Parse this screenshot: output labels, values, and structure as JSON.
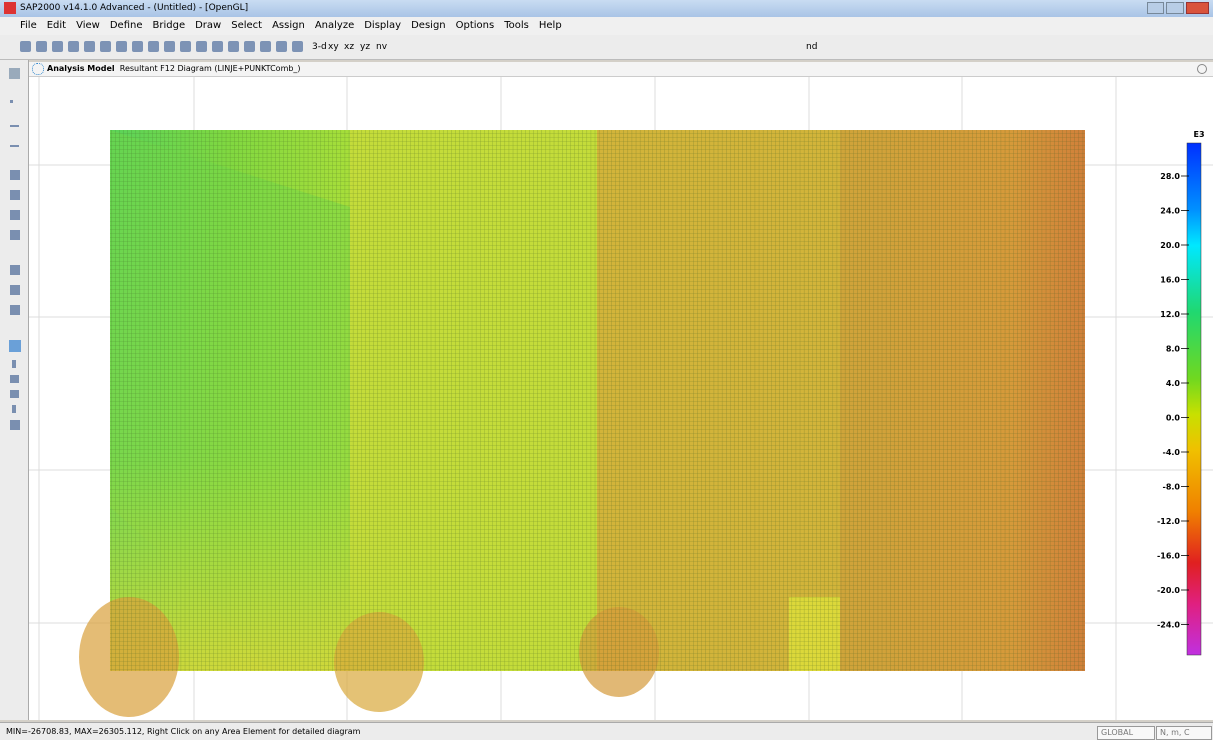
{
  "window": {
    "title": "SAP2000 v14.1.0 Advanced  - (Untitled) - [OpenGL]"
  },
  "menu": [
    "File",
    "Edit",
    "View",
    "Define",
    "Bridge",
    "Draw",
    "Select",
    "Assign",
    "Analyze",
    "Display",
    "Design",
    "Options",
    "Tools",
    "Help"
  ],
  "toolbar": [
    "3-d",
    "xy",
    "xz",
    "yz",
    "nv",
    "nd"
  ],
  "tab": {
    "title": "Analysis Model",
    "subtitle": "Resultant F12 Diagram  (LINJE+PUNKTComb_)"
  },
  "legend": {
    "unit": "E3",
    "labels": [
      "28.0",
      "24.0",
      "20.0",
      "16.0",
      "12.0",
      "8.0",
      "4.0",
      "0.0",
      "-4.0",
      "-8.0",
      "-12.0",
      "-16.0",
      "-20.0",
      "-24.0"
    ]
  },
  "status": {
    "message": "MIN=-26708.83, MAX=26305.112, Right Click on any Area Element for detailed diagram",
    "coord": "GLOBAL",
    "units": "N, m, C"
  }
}
